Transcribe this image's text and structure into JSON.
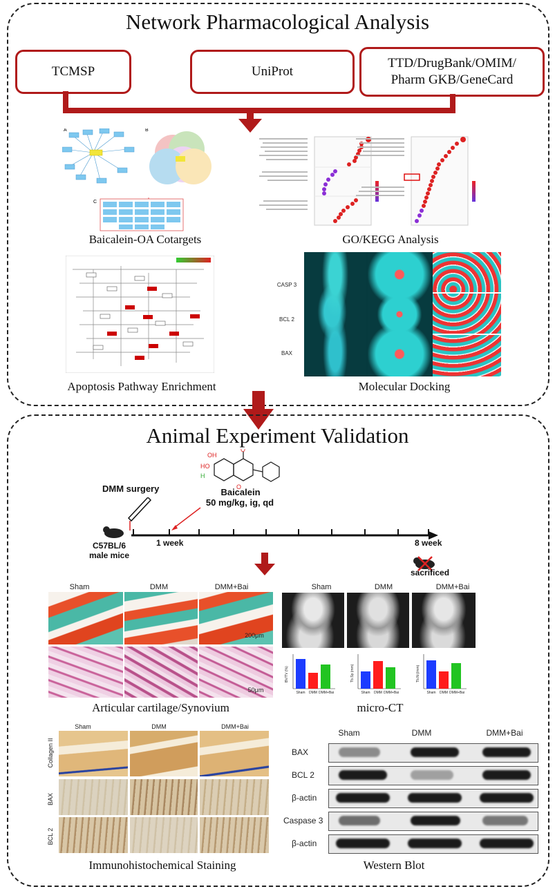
{
  "network": {
    "title": "Network Pharmacological Analysis",
    "sources": [
      "TCMSP",
      "UniProt",
      "TTD/DrugBank/OMIM/\nPharm GKB/GeneCard"
    ],
    "captions": {
      "cotargets": "Baicalein-OA Cotargets",
      "go_kegg": "GO/KEGG Analysis",
      "apoptosis": "Apoptosis Pathway Enrichment",
      "docking": "Molecular Docking"
    },
    "cotarget_panel_letters": [
      "A",
      "B",
      "C"
    ],
    "docking_targets": [
      "CASP 3",
      "BCL 2",
      "BAX"
    ]
  },
  "animal": {
    "title": "Animal Experiment Validation",
    "timeline": {
      "surgery": "DMM surgery",
      "drug_name": "Baicalein",
      "dose": "50 mg/kg, ig, qd",
      "mouse": "C57BL/6\nmale mice",
      "week1": "1 week",
      "week8": "8 week",
      "end": "sacrificed"
    },
    "groups": [
      "Sham",
      "DMM",
      "DMM+Bai"
    ],
    "captions": {
      "histology": "Articular cartilage/Synovium",
      "microct": "micro-CT",
      "ihc": "Immunohistochemical Staining",
      "wb": "Western Blot"
    },
    "scale_bars": [
      "200μm",
      "50μm"
    ],
    "ihc_rows": [
      "Collagen II",
      "BAX",
      "BCL 2"
    ],
    "wb_rows": [
      "BAX",
      "BCL 2",
      "β-actin",
      "Caspase 3",
      "β-actin"
    ],
    "microct_ylabels": [
      "BV/TV (%)",
      "Tb.Sp (mm)",
      "Tb.N (/mm)"
    ]
  },
  "colors": {
    "accent": "#b01a1a",
    "dashed_border": "#222222"
  }
}
